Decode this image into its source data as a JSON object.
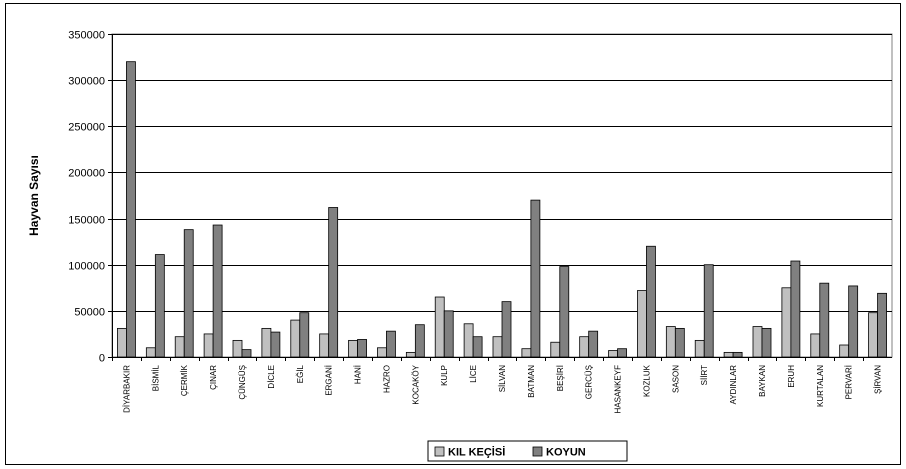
{
  "chart_data": {
    "type": "bar",
    "title": "",
    "xlabel": "",
    "ylabel": "Hayvan Sayısı",
    "ylim": [
      0,
      350000
    ],
    "yticks": [
      0,
      50000,
      100000,
      150000,
      200000,
      250000,
      300000,
      350000
    ],
    "grid": true,
    "legend_position": "bottom",
    "categories": [
      "DİYARBAKIR",
      "BİSMİL",
      "ÇERMİK",
      "ÇINAR",
      "ÇÜNGÜŞ",
      "DİCLE",
      "EĞİL",
      "ERGANİ",
      "HANİ",
      "HAZRO",
      "KOCAKÖY",
      "KULP",
      "LİCE",
      "SİLVAN",
      "BATMAN",
      "BEŞİRİ",
      "GERCÜŞ",
      "HASANKEYF",
      "KOZLUK",
      "SASON",
      "SİİRT",
      "AYDINLAR",
      "BAYKAN",
      "ERUH",
      "KURTALAN",
      "PERVARİ",
      "ŞİRVAN"
    ],
    "series": [
      {
        "name": "KIL KEÇİSİ",
        "color": "#c0c0c0",
        "values": [
          31000,
          10000,
          22000,
          25000,
          18000,
          31000,
          40000,
          25000,
          18000,
          10000,
          5000,
          65000,
          36000,
          22000,
          9000,
          16000,
          22000,
          7000,
          72000,
          33000,
          18000,
          5000,
          33000,
          75000,
          25000,
          13000,
          48000
        ]
      },
      {
        "name": "KOYUN",
        "color": "#808080",
        "values": [
          320000,
          111000,
          138000,
          143000,
          8000,
          27000,
          48000,
          162000,
          19000,
          28000,
          35000,
          50000,
          22000,
          60000,
          170000,
          98000,
          28000,
          9000,
          120000,
          31000,
          100000,
          5000,
          31000,
          104000,
          80000,
          77000,
          69000
        ]
      }
    ]
  }
}
